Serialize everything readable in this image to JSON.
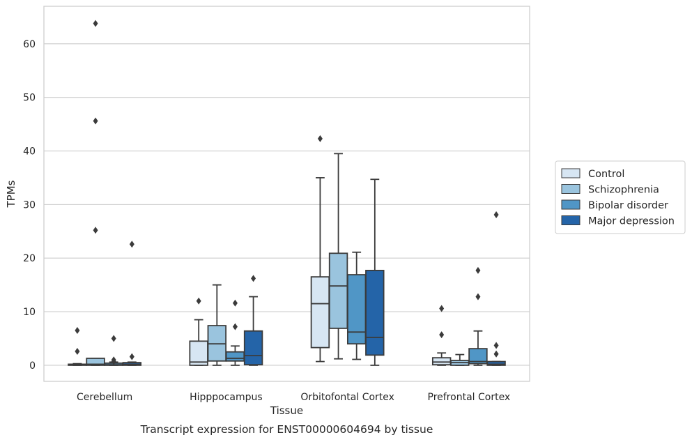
{
  "caption": "Transcript expression for ENST00000604694 by tissue",
  "chart_data": {
    "type": "box",
    "xlabel": "Tissue",
    "ylabel": "TPMs",
    "ylim": [
      -3,
      67
    ],
    "yticks": [
      0,
      10,
      20,
      30,
      40,
      50,
      60
    ],
    "grid": "horizontal",
    "legend_position": "right",
    "categories": [
      "Cerebellum",
      "Hipppocampus",
      "Orbitofontal Cortex",
      "Prefrontal Cortex"
    ],
    "series": [
      {
        "name": "Control",
        "color": "#d7e6f3",
        "boxes": [
          {
            "q1": 0.0,
            "median": 0.1,
            "q3": 0.2,
            "whislo": 0.0,
            "whishi": 0.3,
            "fliers": [
              6.5,
              2.6
            ]
          },
          {
            "q1": 0.0,
            "median": 0.6,
            "q3": 4.5,
            "whislo": 0.0,
            "whishi": 8.5,
            "fliers": [
              12.0
            ]
          },
          {
            "q1": 3.3,
            "median": 11.5,
            "q3": 16.5,
            "whislo": 0.7,
            "whishi": 35.0,
            "fliers": [
              42.3
            ]
          },
          {
            "q1": 0.1,
            "median": 0.6,
            "q3": 1.4,
            "whislo": 0.0,
            "whishi": 2.3,
            "fliers": [
              10.6,
              5.7
            ]
          }
        ]
      },
      {
        "name": "Schizophrenia",
        "color": "#9ac4de",
        "boxes": [
          {
            "q1": 0.0,
            "median": 0.2,
            "q3": 1.3,
            "whislo": 0.0,
            "whishi": 1.3,
            "fliers": [
              63.8,
              45.6,
              25.2
            ]
          },
          {
            "q1": 0.8,
            "median": 4.0,
            "q3": 7.4,
            "whislo": 0.0,
            "whishi": 15.0,
            "fliers": []
          },
          {
            "q1": 6.9,
            "median": 14.8,
            "q3": 20.9,
            "whislo": 1.2,
            "whishi": 39.5,
            "fliers": []
          },
          {
            "q1": 0.0,
            "median": 0.5,
            "q3": 0.9,
            "whislo": 0.0,
            "whishi": 2.0,
            "fliers": []
          }
        ]
      },
      {
        "name": "Bipolar disorder",
        "color": "#5096c6",
        "boxes": [
          {
            "q1": 0.0,
            "median": 0.1,
            "q3": 0.4,
            "whislo": 0.0,
            "whishi": 0.6,
            "fliers": [
              5.0,
              1.0,
              0.7
            ]
          },
          {
            "q1": 0.8,
            "median": 1.3,
            "q3": 2.5,
            "whislo": 0.0,
            "whishi": 3.6,
            "fliers": [
              11.6,
              7.2
            ]
          },
          {
            "q1": 4.0,
            "median": 6.2,
            "q3": 16.9,
            "whislo": 1.1,
            "whishi": 21.1,
            "fliers": []
          },
          {
            "q1": 0.3,
            "median": 0.7,
            "q3": 3.1,
            "whislo": 0.0,
            "whishi": 6.4,
            "fliers": [
              17.7,
              12.8
            ]
          }
        ]
      },
      {
        "name": "Major depression",
        "color": "#2464a8",
        "boxes": [
          {
            "q1": 0.0,
            "median": 0.2,
            "q3": 0.5,
            "whislo": 0.0,
            "whishi": 0.6,
            "fliers": [
              22.6,
              1.6
            ]
          },
          {
            "q1": 0.1,
            "median": 1.8,
            "q3": 6.4,
            "whislo": 0.0,
            "whishi": 12.8,
            "fliers": [
              16.2
            ]
          },
          {
            "q1": 1.9,
            "median": 5.2,
            "q3": 17.7,
            "whislo": 0.0,
            "whishi": 34.7,
            "fliers": []
          },
          {
            "q1": 0.0,
            "median": 0.2,
            "q3": 0.7,
            "whislo": 0.0,
            "whishi": 0.7,
            "fliers": [
              28.1,
              3.7,
              2.1
            ]
          }
        ]
      }
    ]
  }
}
